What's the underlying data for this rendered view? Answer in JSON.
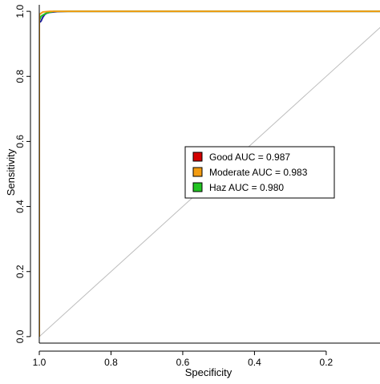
{
  "chart_data": {
    "type": "line",
    "title": "",
    "xlabel": "Specificity",
    "ylabel": "Sensitivity",
    "x_reversed": true,
    "xlim": [
      1.0,
      0.05
    ],
    "ylim": [
      -0.02,
      1.02
    ],
    "x_ticks": [
      {
        "value": 1.0,
        "label": "1.0"
      },
      {
        "value": 0.8,
        "label": "0.8"
      },
      {
        "value": 0.6,
        "label": "0.6"
      },
      {
        "value": 0.4,
        "label": "0.4"
      },
      {
        "value": 0.2,
        "label": "0.2"
      }
    ],
    "y_ticks": [
      {
        "value": 0.0,
        "label": "0.0"
      },
      {
        "value": 0.2,
        "label": "0.2"
      },
      {
        "value": 0.4,
        "label": "0.4"
      },
      {
        "value": 0.6,
        "label": "0.6"
      },
      {
        "value": 0.8,
        "label": "0.8"
      },
      {
        "value": 1.0,
        "label": "1.0"
      }
    ],
    "grid": false,
    "legend_position": "center-right",
    "reference_line": {
      "x": [
        1.0,
        0.0
      ],
      "y": [
        0.0,
        1.0
      ],
      "color": "#bdbdbd"
    },
    "series": [
      {
        "name": "Good AUC = 0.987",
        "color": "#1f1f9e",
        "legend_color": "#d40000",
        "x": [
          1.0,
          1.0,
          0.995,
          0.993,
          0.99,
          0.985,
          0.98,
          0.97,
          0.95,
          0.92,
          0.0
        ],
        "y": [
          0.0,
          0.965,
          0.97,
          0.975,
          0.982,
          0.99,
          0.994,
          0.997,
          0.999,
          1.0,
          1.0
        ]
      },
      {
        "name": "Moderate AUC = 0.983",
        "color": "#f39c12",
        "legend_color": "#f39c12",
        "x": [
          1.0,
          1.0,
          0.99,
          0.97,
          0.0
        ],
        "y": [
          0.0,
          0.99,
          0.998,
          1.0,
          1.0
        ]
      },
      {
        "name": "Haz AUC = 0.980",
        "color": "#22c422",
        "legend_color": "#22c422",
        "x": [
          1.0,
          1.0,
          0.995,
          0.98,
          0.96,
          0.0
        ],
        "y": [
          0.0,
          0.972,
          0.985,
          0.995,
          1.0,
          1.0
        ]
      }
    ]
  }
}
